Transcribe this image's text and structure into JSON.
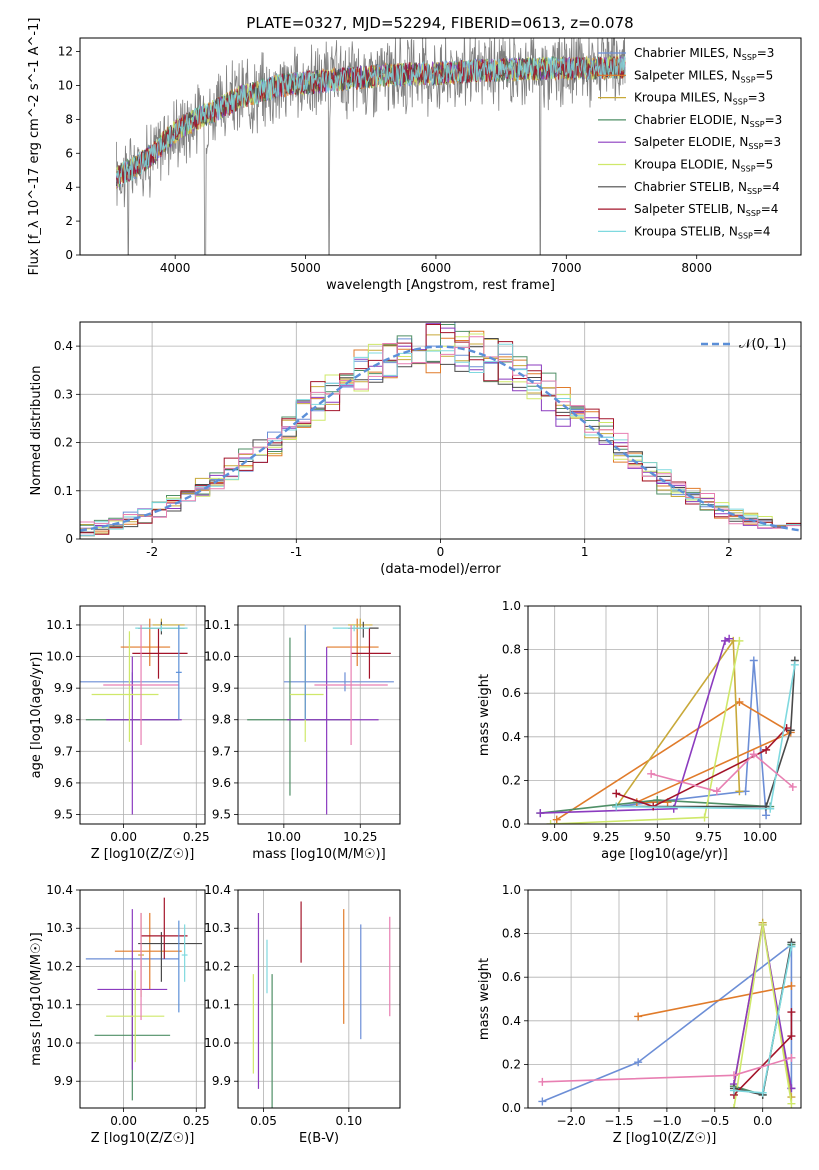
{
  "figure": {
    "title": "PLATE=0327, MJD=52294, FIBERID=0613, z=0.078"
  },
  "colors": {
    "chabrier_miles": "#6c8ed6",
    "salpeter_miles": "#e07b2a",
    "kroupa_miles": "#c8a93a",
    "chabrier_elodie": "#4f8f66",
    "salpeter_elodie": "#8b3bbf",
    "kroupa_elodie": "#cfe86a",
    "chabrier_stelib": "#4a4a4a",
    "salpeter_stelib": "#a3142a",
    "kroupa_stelib": "#7fd9df",
    "pink": "#e87fb2",
    "normal": "#5b8fd8",
    "data_spectrum": "#808080",
    "grid": "#b0b0b0"
  },
  "chart_data": [
    {
      "id": "spectrum",
      "type": "line",
      "title": "PLATE=0327, MJD=52294, FIBERID=0613, z=0.078",
      "xlabel": "wavelength [Angstrom, rest frame]",
      "ylabel": "Flux [f_λ 10^-17 erg cm^-2 s^-1 A^-1]",
      "xlim": [
        3270,
        8800
      ],
      "ylim": [
        0,
        12.8
      ],
      "xticks": [
        4000,
        5000,
        6000,
        7000,
        8000
      ],
      "yticks": [
        0,
        2,
        4,
        6,
        8,
        10,
        12
      ],
      "grid": false,
      "legend_position": "top-right",
      "legend": [
        "Chabrier MILES, N_SSP=3",
        "Salpeter MILES, N_SSP=5",
        "Kroupa MILES, N_SSP=3",
        "Chabrier ELODIE, N_SSP=3",
        "Salpeter ELODIE, N_SSP=3",
        "Kroupa ELODIE, N_SSP=5",
        "Chabrier STELIB, N_SSP=4",
        "Salpeter STELIB, N_SSP=4",
        "Kroupa STELIB, N_SSP=4"
      ],
      "continuum": [
        [
          3550,
          4.6
        ],
        [
          3700,
          5.2
        ],
        [
          3850,
          6.1
        ],
        [
          3950,
          7.0
        ],
        [
          4100,
          7.8
        ],
        [
          4300,
          8.5
        ],
        [
          4500,
          9.3
        ],
        [
          4800,
          10.0
        ],
        [
          5200,
          10.3
        ],
        [
          5600,
          10.6
        ],
        [
          6000,
          10.7
        ],
        [
          6400,
          10.9
        ],
        [
          6800,
          11.0
        ],
        [
          7200,
          11.0
        ],
        [
          7450,
          11.1
        ]
      ],
      "data_range": [
        3550,
        7450
      ],
      "model_range": [
        3550,
        8300
      ]
    },
    {
      "id": "residuals",
      "type": "histogram",
      "xlabel": "(data-model)/error",
      "ylabel": "Normed distribution",
      "xlim": [
        -2.5,
        2.5
      ],
      "ylim": [
        0,
        0.45
      ],
      "xticks": [
        -2,
        -1,
        0,
        1,
        2
      ],
      "yticks": [
        0.0,
        0.1,
        0.2,
        0.3,
        0.4
      ],
      "grid": true,
      "legend_position": "top-right",
      "legend": [
        "𝒩(0, 1)"
      ],
      "bin_width": 0.1
    },
    {
      "id": "age-vs-Z",
      "type": "errorbar",
      "xlabel": "Z [log10(Z/Z☉)]",
      "ylabel": "age [log10(age/yr)]",
      "xlim": [
        -0.15,
        0.28
      ],
      "ylim": [
        9.47,
        10.16
      ],
      "xticks": [
        "0.00",
        "0.25"
      ],
      "yticks": [
        "9.5",
        "9.6",
        "9.7",
        "9.8",
        "9.9",
        "10.0",
        "10.1"
      ],
      "grid": true,
      "points": [
        {
          "color": "chabrier_miles",
          "x": 0.03,
          "xerr": [
            0.2,
            0.16
          ],
          "y": 9.92,
          "yerr": [
            0.03,
            0.03
          ]
        },
        {
          "color": "salpeter_miles",
          "x": 0.09,
          "xerr": [
            0.1,
            0.07
          ],
          "y": 10.03,
          "yerr": [
            0.06,
            0.09
          ]
        },
        {
          "color": "kroupa_miles",
          "x": 0.13,
          "xerr": [
            0.03,
            0.08
          ],
          "y": 10.1,
          "yerr": [
            0.01,
            0.02
          ]
        },
        {
          "color": "chabrier_elodie",
          "x": -0.11,
          "xerr": [
            0.02,
            0.3
          ],
          "y": 9.8,
          "yerr": [
            0,
            0
          ]
        },
        {
          "color": "salpeter_elodie",
          "x": 0.03,
          "xerr": [
            0.09,
            0.17
          ],
          "y": 9.8,
          "yerr": [
            0.3,
            0.2
          ]
        },
        {
          "color": "kroupa_elodie",
          "x": 0.02,
          "xerr": [
            0.13,
            0.1
          ],
          "y": 9.88,
          "yerr": [
            0.15,
            0.2
          ]
        },
        {
          "color": "chabrier_stelib",
          "x": 0.13,
          "xerr": [
            0.08,
            0.08
          ],
          "y": 10.09,
          "yerr": [
            0.02,
            0.02
          ]
        },
        {
          "color": "salpeter_stelib",
          "x": 0.12,
          "xerr": [
            0.09,
            0.1
          ],
          "y": 10.01,
          "yerr": [
            0.08,
            0.08
          ]
        },
        {
          "color": "kroupa_stelib",
          "x": 0.13,
          "xerr": [
            0.09,
            0.09
          ],
          "y": 10.09,
          "yerr": [
            0.01,
            0.01
          ]
        },
        {
          "color": "pink",
          "x": 0.06,
          "xerr": [
            0.13,
            0.13
          ],
          "y": 9.91,
          "yerr": [
            0.19,
            0.19
          ]
        },
        {
          "color": "normal",
          "x": 0.19,
          "xerr": [
            0.01,
            0.01
          ],
          "y": 9.95,
          "yerr": [
            0.15,
            0.15
          ]
        }
      ]
    },
    {
      "id": "age-vs-mass",
      "type": "errorbar",
      "xlabel": "mass [log10(M/M☉)]",
      "ylabel": "",
      "xlim": [
        9.85,
        10.38
      ],
      "ylim": [
        9.47,
        10.16
      ],
      "xticks": [
        "10.00",
        "10.25"
      ],
      "yticks": [
        "9.5",
        "9.6",
        "9.7",
        "9.8",
        "9.9",
        "10.0",
        "10.1"
      ],
      "grid": true,
      "points": [
        {
          "color": "chabrier_miles",
          "x": 10.2,
          "xerr": [
            0.2,
            0.16
          ],
          "y": 9.92,
          "yerr": [
            0.03,
            0.03
          ]
        },
        {
          "color": "salpeter_miles",
          "x": 10.24,
          "xerr": [
            0.1,
            0.07
          ],
          "y": 10.03,
          "yerr": [
            0.06,
            0.09
          ]
        },
        {
          "color": "kroupa_miles",
          "x": 10.25,
          "xerr": [
            0.04,
            0.04
          ],
          "y": 10.1,
          "yerr": [
            0.01,
            0.02
          ]
        },
        {
          "color": "chabrier_elodie",
          "x": 10.02,
          "xerr": [
            0.14,
            0.2
          ],
          "y": 9.8,
          "yerr": [
            0.24,
            0.26
          ]
        },
        {
          "color": "salpeter_elodie",
          "x": 10.14,
          "xerr": [
            0.13,
            0.17
          ],
          "y": 9.8,
          "yerr": [
            0.3,
            0.23
          ]
        },
        {
          "color": "kroupa_elodie",
          "x": 10.07,
          "xerr": [
            0.05,
            0.06
          ],
          "y": 9.88,
          "yerr": [
            0.15,
            0.2
          ]
        },
        {
          "color": "chabrier_stelib",
          "x": 10.26,
          "xerr": [
            0.05,
            0.05
          ],
          "y": 10.09,
          "yerr": [
            0.03,
            0.02
          ]
        },
        {
          "color": "salpeter_stelib",
          "x": 10.28,
          "xerr": [
            0.06,
            0.07
          ],
          "y": 10.01,
          "yerr": [
            0.08,
            0.08
          ]
        },
        {
          "color": "kroupa_stelib",
          "x": 10.23,
          "xerr": [
            0.07,
            0.05
          ],
          "y": 10.09,
          "yerr": [
            0.01,
            0.01
          ]
        },
        {
          "color": "pink",
          "x": 10.22,
          "xerr": [
            0.12,
            0.12
          ],
          "y": 9.91,
          "yerr": [
            0.19,
            0.19
          ]
        },
        {
          "color": "normal",
          "x": 10.07,
          "xerr": [
            0.0,
            0.0
          ],
          "y": 9.95,
          "yerr": [
            0.15,
            0.15
          ]
        }
      ]
    },
    {
      "id": "mass-weight-vs-age",
      "type": "line",
      "xlabel": "age [log10(age/yr)]",
      "ylabel": "mass weight",
      "xlim": [
        8.87,
        10.2
      ],
      "ylim": [
        0,
        1
      ],
      "xticks": [
        "9.00",
        "9.25",
        "9.50",
        "9.75",
        "10.00"
      ],
      "yticks": [
        "0.0",
        "0.2",
        "0.4",
        "0.6",
        "0.8",
        "1.0"
      ],
      "grid": true,
      "series": [
        {
          "color": "chabrier_miles",
          "x": [
            9.3,
            9.93,
            9.97,
            10.03
          ],
          "y": [
            0.08,
            0.15,
            0.75,
            0.04
          ]
        },
        {
          "color": "salpeter_miles",
          "x": [
            9.01,
            9.9,
            10.15,
            9.4,
            9.55
          ],
          "y": [
            0.02,
            0.56,
            0.42,
            0.1,
            0.1
          ]
        },
        {
          "color": "kroupa_miles",
          "x": [
            9.3,
            9.87,
            9.9
          ],
          "y": [
            0.08,
            0.84,
            0.15
          ]
        },
        {
          "color": "chabrier_elodie",
          "x": [
            8.93,
            9.5,
            10.05
          ],
          "y": [
            0.05,
            0.11,
            0.08
          ]
        },
        {
          "color": "salpeter_elodie",
          "x": [
            8.93,
            9.58,
            9.83,
            9.85
          ],
          "y": [
            0.05,
            0.07,
            0.84,
            0.85
          ]
        },
        {
          "color": "kroupa_elodie",
          "x": [
            8.98,
            9.73,
            9.9
          ],
          "y": [
            0.0,
            0.03,
            0.84
          ]
        },
        {
          "color": "chabrier_stelib",
          "x": [
            9.3,
            10.03,
            10.15,
            10.17
          ],
          "y": [
            0.08,
            0.08,
            0.43,
            0.75
          ]
        },
        {
          "color": "salpeter_stelib",
          "x": [
            9.3,
            9.48,
            10.03,
            10.13
          ],
          "y": [
            0.14,
            0.08,
            0.34,
            0.44
          ]
        },
        {
          "color": "kroupa_stelib",
          "x": [
            9.3,
            10.05,
            10.17
          ],
          "y": [
            0.08,
            0.07,
            0.73
          ]
        },
        {
          "color": "pink",
          "x": [
            9.47,
            9.79,
            9.97,
            10.16
          ],
          "y": [
            0.23,
            0.15,
            0.32,
            0.17
          ]
        }
      ]
    },
    {
      "id": "mass-vs-Z",
      "type": "errorbar",
      "xlabel": "Z [log10(Z/Z☉)]",
      "ylabel": "mass [log10(M/M☉)]",
      "xlim": [
        -0.15,
        0.28
      ],
      "ylim": [
        9.83,
        10.4
      ],
      "xticks": [
        "0.00",
        "0.25"
      ],
      "yticks": [
        "9.9",
        "10.0",
        "10.1",
        "10.2",
        "10.3",
        "10.4"
      ],
      "grid": true,
      "points": [
        {
          "color": "chabrier_miles",
          "x": 0.03,
          "xerr": [
            0.16,
            0.16
          ],
          "y": 10.22,
          "yerr": [
            0,
            0
          ]
        },
        {
          "color": "salpeter_miles",
          "x": 0.09,
          "xerr": [
            0.12,
            0.11
          ],
          "y": 10.24,
          "yerr": [
            0.1,
            0.1
          ]
        },
        {
          "color": "kroupa_miles",
          "x": 0.06,
          "xerr": [
            0.01,
            0.01
          ],
          "y": 10.23,
          "yerr": [
            0.11,
            0.11
          ]
        },
        {
          "color": "chabrier_elodie",
          "x": 0.03,
          "xerr": [
            0.13,
            0.13
          ],
          "y": 10.02,
          "yerr": [
            0.17,
            0.17
          ]
        },
        {
          "color": "salpeter_elodie",
          "x": 0.03,
          "xerr": [
            0.12,
            0.12
          ],
          "y": 10.14,
          "yerr": [
            0.21,
            0.21
          ]
        },
        {
          "color": "kroupa_elodie",
          "x": 0.04,
          "xerr": [
            0.1,
            0.1
          ],
          "y": 10.07,
          "yerr": [
            0.12,
            0.12
          ]
        },
        {
          "color": "chabrier_stelib",
          "x": 0.13,
          "xerr": [
            0.08,
            0.14
          ],
          "y": 10.26,
          "yerr": [
            0.1,
            0.03
          ]
        },
        {
          "color": "salpeter_stelib",
          "x": 0.14,
          "xerr": [
            0.08,
            0.08
          ],
          "y": 10.28,
          "yerr": [
            0.06,
            0.1
          ]
        },
        {
          "color": "kroupa_stelib",
          "x": 0.21,
          "xerr": [
            0.01,
            0.01
          ],
          "y": 10.23,
          "yerr": [
            0.07,
            0.08
          ]
        },
        {
          "color": "pink",
          "x": 0.06,
          "xerr": [
            0.0,
            0.0
          ],
          "y": 10.2,
          "yerr": [
            0.14,
            0.14
          ]
        },
        {
          "color": "normal",
          "x": 0.19,
          "xerr": [
            0.0,
            0.0
          ],
          "y": 10.2,
          "yerr": [
            0.12,
            0.12
          ]
        }
      ]
    },
    {
      "id": "mass-vs-ebv",
      "type": "errorbar",
      "xlabel": "E(B-V)",
      "ylabel": "",
      "xlim": [
        0.035,
        0.13
      ],
      "ylim": [
        9.83,
        10.4
      ],
      "xticks": [
        "0.05",
        "0.10"
      ],
      "yticks": [
        "9.9",
        "10.0",
        "10.1",
        "10.2",
        "10.3",
        "10.4"
      ],
      "grid": true,
      "points": [
        {
          "color": "kroupa_elodie",
          "x": 0.044,
          "y": 10.05,
          "yerr": [
            0.13,
            0.13
          ]
        },
        {
          "color": "salpeter_elodie",
          "x": 0.047,
          "y": 10.11,
          "yerr": [
            0.23,
            0.23
          ]
        },
        {
          "color": "kroupa_stelib",
          "x": 0.052,
          "y": 10.2,
          "yerr": [
            0.07,
            0.07
          ]
        },
        {
          "color": "chabrier_elodie",
          "x": 0.055,
          "y": 10.0,
          "yerr": [
            0.18,
            0.18
          ]
        },
        {
          "color": "salpeter_stelib",
          "x": 0.072,
          "y": 10.29,
          "yerr": [
            0.08,
            0.08
          ]
        },
        {
          "color": "salpeter_miles",
          "x": 0.097,
          "y": 10.2,
          "yerr": [
            0.15,
            0.15
          ]
        },
        {
          "color": "chabrier_miles",
          "x": 0.107,
          "y": 10.16,
          "yerr": [
            0.15,
            0.15
          ]
        },
        {
          "color": "pink",
          "x": 0.124,
          "y": 10.2,
          "yerr": [
            0.13,
            0.13
          ]
        }
      ]
    },
    {
      "id": "mass-weight-vs-Z",
      "type": "line",
      "xlabel": "Z [log10(Z/Z☉)]",
      "ylabel": "mass weight",
      "xlim": [
        -2.45,
        0.4
      ],
      "ylim": [
        0,
        1
      ],
      "xticks": [
        "−2.0",
        "−1.5",
        "−1.0",
        "−0.5",
        "0.0"
      ],
      "yticks": [
        "0.0",
        "0.2",
        "0.4",
        "0.6",
        "0.8",
        "1.0"
      ],
      "grid": true,
      "series": [
        {
          "color": "chabrier_miles",
          "x": [
            -2.3,
            -1.3,
            0.3,
            0.3
          ],
          "y": [
            0.03,
            0.21,
            0.75,
            0.09
          ]
        },
        {
          "color": "salpeter_miles",
          "x": [
            -1.3,
            0.3
          ],
          "y": [
            0.42,
            0.56
          ]
        },
        {
          "color": "kroupa_miles",
          "x": [
            -0.3,
            0.0,
            0.3
          ],
          "y": [
            0.1,
            0.85,
            0.05
          ]
        },
        {
          "color": "chabrier_elodie",
          "x": [
            -0.3,
            0.0,
            0.3
          ],
          "y": [
            0.1,
            0.06,
            0.75
          ]
        },
        {
          "color": "salpeter_elodie",
          "x": [
            -0.3,
            0.0,
            0.3
          ],
          "y": [
            0.11,
            0.84,
            0.09
          ]
        },
        {
          "color": "kroupa_elodie",
          "x": [
            -0.3,
            0.0,
            0.3
          ],
          "y": [
            0.0,
            0.84,
            0.02
          ]
        },
        {
          "color": "chabrier_stelib",
          "x": [
            -0.3,
            0.0,
            0.3
          ],
          "y": [
            0.09,
            0.06,
            0.76
          ]
        },
        {
          "color": "salpeter_stelib",
          "x": [
            -0.3,
            0.3,
            0.3
          ],
          "y": [
            0.06,
            0.33,
            0.44
          ]
        },
        {
          "color": "kroupa_stelib",
          "x": [
            -0.3,
            0.0,
            0.3
          ],
          "y": [
            0.08,
            0.07,
            0.74
          ]
        },
        {
          "color": "pink",
          "x": [
            -2.3,
            -0.3,
            0.3
          ],
          "y": [
            0.12,
            0.15,
            0.23
          ]
        }
      ]
    }
  ]
}
